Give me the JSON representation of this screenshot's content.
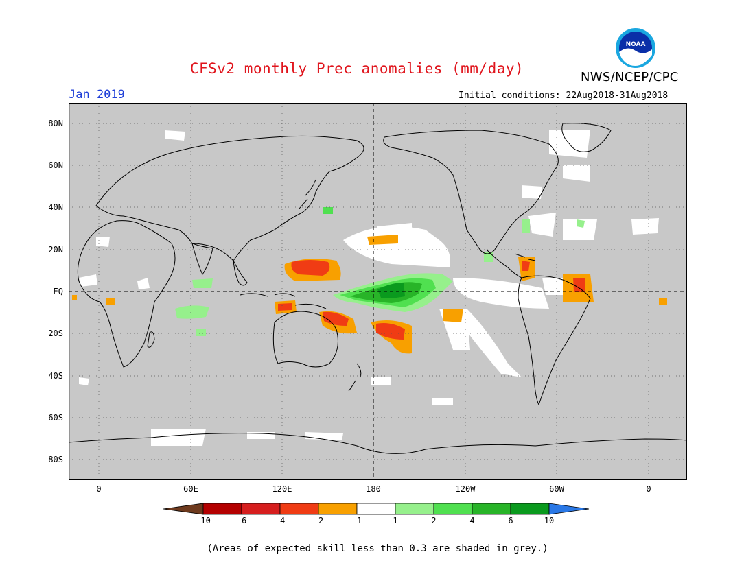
{
  "title": "CFSv2 monthly Prec anomalies (mm/day)",
  "agency": "NWS/NCEP/CPC",
  "logo_text": "NOAA",
  "month_label": "Jan 2019",
  "init_label": "Initial conditions: 22Aug2018-31Aug2018",
  "footnote": "(Areas of expected skill less than 0.3 are shaded in grey.)",
  "y_ticks": [
    "80N",
    "60N",
    "40N",
    "20N",
    "EQ",
    "20S",
    "40S",
    "60S",
    "80S"
  ],
  "x_ticks": [
    "0",
    "60E",
    "120E",
    "180",
    "120W",
    "60W",
    "0"
  ],
  "legend": {
    "labels": [
      "-10",
      "-6",
      "-4",
      "-2",
      "-1",
      "1",
      "2",
      "4",
      "6",
      "10"
    ],
    "colors": [
      "#6e3a1e",
      "#b40000",
      "#d61e1e",
      "#f03c14",
      "#f8a000",
      "#ffffff",
      "#96f08c",
      "#50e050",
      "#28b428",
      "#0a9a1e",
      "#2a78e6"
    ]
  },
  "colors": {
    "skill_grey": "#c8c8c8",
    "title_red": "#e0141c",
    "month_blue": "#1f3fd8"
  }
}
